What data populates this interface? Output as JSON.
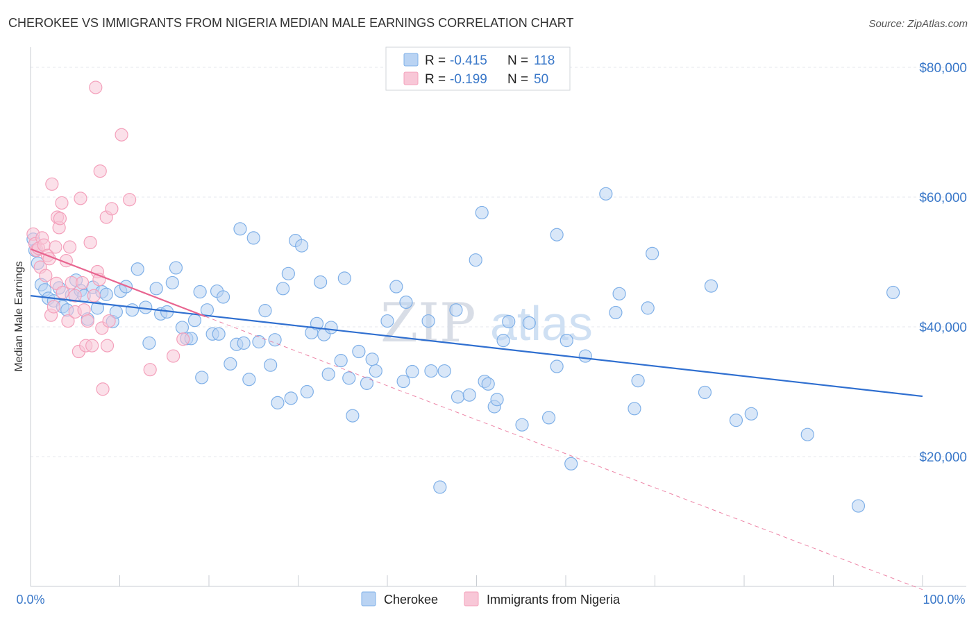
{
  "chart_data": {
    "type": "scatter",
    "title": "CHEROKEE VS IMMIGRANTS FROM NIGERIA MEDIAN MALE EARNINGS CORRELATION CHART",
    "source": "Source: ZipAtlas.com",
    "ylabel": "Median Male Earnings",
    "xlabel": "",
    "xlim": [
      0,
      100
    ],
    "ylim": [
      0,
      80000
    ],
    "y_ticks": [
      {
        "value": 20000,
        "label": "$20,000"
      },
      {
        "value": 40000,
        "label": "$40,000"
      },
      {
        "value": 60000,
        "label": "$60,000"
      },
      {
        "value": 80000,
        "label": "$80,000"
      }
    ],
    "x_tick_labels": {
      "min": "0.0%",
      "max": "100.0%"
    },
    "watermark": {
      "zip": "ZIP",
      "atlas": "atlas"
    },
    "legend_top": [
      {
        "r_label": "R =",
        "r_value": "-0.415",
        "n_label": "N =",
        "n_value": "118"
      },
      {
        "r_label": "R =",
        "r_value": "-0.199",
        "n_label": "N =",
        "n_value": "50"
      }
    ],
    "series": [
      {
        "name": "Cherokee",
        "color": "#7fb0e8",
        "line_color": "#2f6fd0",
        "trend": {
          "x0": 0,
          "y0": 44800,
          "x1": 100,
          "y1": 29300
        },
        "points": [
          [
            0.3,
            53500
          ],
          [
            0.5,
            51800
          ],
          [
            0.8,
            49800
          ],
          [
            1.2,
            46500
          ],
          [
            1.6,
            45700
          ],
          [
            2.0,
            44400
          ],
          [
            2.6,
            44000
          ],
          [
            3.2,
            46000
          ],
          [
            3.6,
            43100
          ],
          [
            4.1,
            42600
          ],
          [
            4.6,
            44900
          ],
          [
            5.1,
            47200
          ],
          [
            5.6,
            45600
          ],
          [
            6.0,
            44800
          ],
          [
            6.4,
            41200
          ],
          [
            7.0,
            46100
          ],
          [
            7.5,
            42900
          ],
          [
            8.0,
            45400
          ],
          [
            8.5,
            45000
          ],
          [
            9.2,
            40800
          ],
          [
            9.6,
            42300
          ],
          [
            10.1,
            45500
          ],
          [
            10.7,
            46200
          ],
          [
            11.4,
            42600
          ],
          [
            12.0,
            48900
          ],
          [
            12.9,
            43000
          ],
          [
            13.3,
            37500
          ],
          [
            14.1,
            45900
          ],
          [
            14.6,
            42000
          ],
          [
            15.3,
            42300
          ],
          [
            15.9,
            46800
          ],
          [
            16.3,
            49100
          ],
          [
            17.0,
            39900
          ],
          [
            17.5,
            38200
          ],
          [
            18.0,
            38200
          ],
          [
            18.4,
            41000
          ],
          [
            19.0,
            45400
          ],
          [
            19.2,
            32200
          ],
          [
            19.8,
            42600
          ],
          [
            20.4,
            38900
          ],
          [
            20.9,
            45500
          ],
          [
            21.1,
            38900
          ],
          [
            21.6,
            44600
          ],
          [
            22.4,
            34300
          ],
          [
            23.1,
            37300
          ],
          [
            23.5,
            55100
          ],
          [
            23.9,
            37500
          ],
          [
            24.5,
            31900
          ],
          [
            25.0,
            53700
          ],
          [
            25.6,
            37700
          ],
          [
            26.3,
            42500
          ],
          [
            26.9,
            34100
          ],
          [
            27.4,
            38000
          ],
          [
            27.7,
            28300
          ],
          [
            28.3,
            45900
          ],
          [
            28.9,
            48200
          ],
          [
            29.2,
            29000
          ],
          [
            29.7,
            53300
          ],
          [
            30.4,
            52500
          ],
          [
            31.0,
            30000
          ],
          [
            31.5,
            39100
          ],
          [
            32.1,
            40500
          ],
          [
            32.5,
            46900
          ],
          [
            32.9,
            38800
          ],
          [
            33.4,
            32700
          ],
          [
            33.7,
            39900
          ],
          [
            34.8,
            34800
          ],
          [
            35.2,
            47500
          ],
          [
            35.7,
            32100
          ],
          [
            36.1,
            26300
          ],
          [
            36.8,
            36200
          ],
          [
            37.7,
            31300
          ],
          [
            38.3,
            35000
          ],
          [
            38.7,
            33200
          ],
          [
            40.0,
            40900
          ],
          [
            41.0,
            46200
          ],
          [
            41.8,
            31600
          ],
          [
            42.1,
            43800
          ],
          [
            42.8,
            33100
          ],
          [
            44.6,
            40900
          ],
          [
            44.9,
            33200
          ],
          [
            45.9,
            15300
          ],
          [
            46.4,
            33200
          ],
          [
            47.7,
            42600
          ],
          [
            47.9,
            29200
          ],
          [
            49.2,
            29500
          ],
          [
            49.9,
            50300
          ],
          [
            50.6,
            57600
          ],
          [
            50.9,
            31600
          ],
          [
            51.3,
            31200
          ],
          [
            52.0,
            27700
          ],
          [
            52.3,
            28800
          ],
          [
            53.0,
            37900
          ],
          [
            53.6,
            40800
          ],
          [
            55.1,
            24900
          ],
          [
            55.9,
            40600
          ],
          [
            58.1,
            26000
          ],
          [
            59.0,
            54200
          ],
          [
            59.0,
            33900
          ],
          [
            60.1,
            37900
          ],
          [
            60.6,
            18900
          ],
          [
            62.2,
            35500
          ],
          [
            64.5,
            60500
          ],
          [
            65.6,
            42200
          ],
          [
            66.0,
            45100
          ],
          [
            67.7,
            27400
          ],
          [
            68.1,
            31700
          ],
          [
            69.2,
            42900
          ],
          [
            69.7,
            51300
          ],
          [
            75.6,
            29900
          ],
          [
            76.3,
            46300
          ],
          [
            79.1,
            25600
          ],
          [
            80.8,
            26600
          ],
          [
            87.1,
            23400
          ],
          [
            92.8,
            12400
          ],
          [
            96.7,
            45300
          ]
        ]
      },
      {
        "name": "Immigrants from Nigeria",
        "color": "#f4a0bb",
        "line_color": "#e86590",
        "trend": {
          "x0": 0,
          "y0": 52000,
          "x1": 19.6,
          "y1": 41600
        },
        "trend_dashed": {
          "x0": 19.6,
          "y0": 41600,
          "x1": 100,
          "y1": -500
        },
        "points": [
          [
            0.3,
            54300
          ],
          [
            0.5,
            52800
          ],
          [
            0.7,
            51800
          ],
          [
            0.9,
            52100
          ],
          [
            1.1,
            49200
          ],
          [
            1.3,
            53700
          ],
          [
            1.5,
            52600
          ],
          [
            1.7,
            47900
          ],
          [
            1.9,
            51000
          ],
          [
            2.1,
            50500
          ],
          [
            2.3,
            41800
          ],
          [
            2.4,
            62000
          ],
          [
            2.6,
            43100
          ],
          [
            2.8,
            52300
          ],
          [
            2.9,
            46700
          ],
          [
            3.0,
            56900
          ],
          [
            3.2,
            55300
          ],
          [
            3.3,
            56700
          ],
          [
            3.5,
            59100
          ],
          [
            3.6,
            45300
          ],
          [
            4.0,
            50200
          ],
          [
            4.2,
            40900
          ],
          [
            4.4,
            52300
          ],
          [
            4.6,
            46800
          ],
          [
            5.0,
            44800
          ],
          [
            5.0,
            42300
          ],
          [
            5.4,
            36200
          ],
          [
            5.6,
            59800
          ],
          [
            5.8,
            46800
          ],
          [
            6.0,
            42600
          ],
          [
            6.2,
            37100
          ],
          [
            6.4,
            40900
          ],
          [
            6.7,
            53000
          ],
          [
            6.9,
            37100
          ],
          [
            7.1,
            44800
          ],
          [
            7.3,
            76900
          ],
          [
            7.5,
            48500
          ],
          [
            7.7,
            47300
          ],
          [
            7.8,
            64000
          ],
          [
            8.0,
            39800
          ],
          [
            8.1,
            30400
          ],
          [
            8.5,
            56900
          ],
          [
            8.6,
            37100
          ],
          [
            8.8,
            40900
          ],
          [
            9.1,
            58200
          ],
          [
            10.2,
            69600
          ],
          [
            11.1,
            59600
          ],
          [
            13.4,
            33400
          ],
          [
            16.0,
            35500
          ],
          [
            17.1,
            38100
          ]
        ]
      }
    ]
  },
  "legend_bottom": [
    "Cherokee",
    "Immigrants from Nigeria"
  ],
  "colors": {
    "cherokee_fill": "#b9d3f3",
    "cherokee_stroke": "#7fb0e8",
    "nigeria_fill": "#f8c7d7",
    "nigeria_stroke": "#f4a0bb",
    "grid": "#e4e7ec",
    "axis_text": "#3a78c9"
  }
}
